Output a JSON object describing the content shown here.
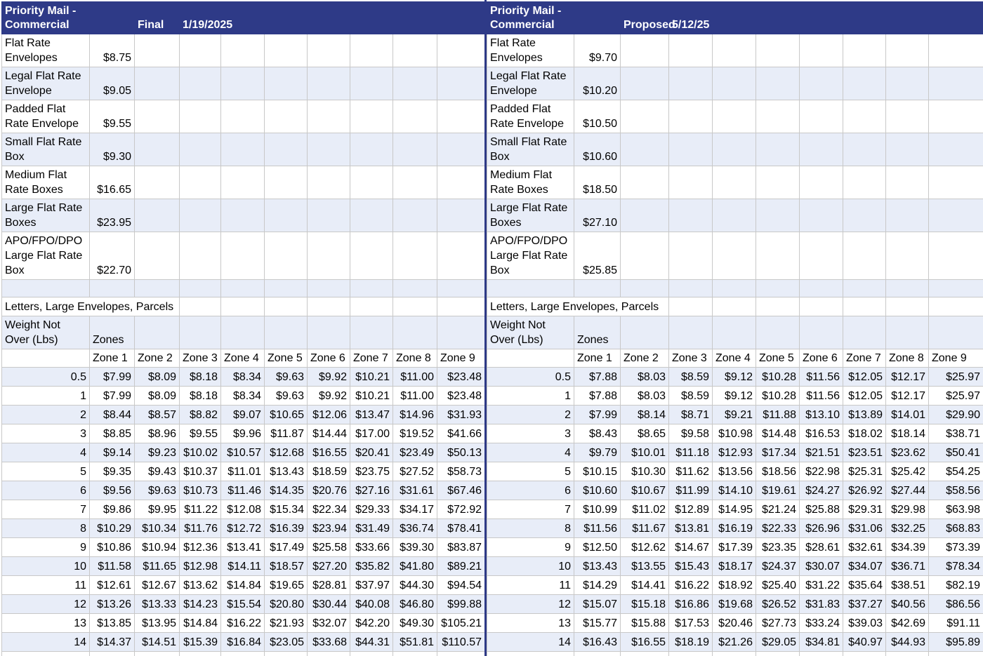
{
  "left": {
    "title": "Priority Mail - Commercial",
    "status": "Final",
    "date": "1/19/2025",
    "flat_rate": [
      {
        "label": "Flat Rate Envelopes",
        "price": "$8.75"
      },
      {
        "label": "Legal Flat Rate Envelope",
        "price": "$9.05"
      },
      {
        "label": "Padded Flat Rate Envelope",
        "price": "$9.55"
      },
      {
        "label": "Small Flat Rate Box",
        "price": "$9.30"
      },
      {
        "label": "Medium Flat Rate Boxes",
        "price": "$16.65"
      },
      {
        "label": "Large Flat Rate Boxes",
        "price": "$23.95"
      },
      {
        "label": "APO/FPO/DPO Large Flat Rate Box",
        "price": "$22.70"
      }
    ],
    "section": "Letters, Large Envelopes, Parcels",
    "weight_header": "Weight Not Over (Lbs)",
    "zones_header": "Zones",
    "zones": [
      "Zone 1",
      "Zone 2",
      "Zone 3",
      "Zone 4",
      "Zone 5",
      "Zone 6",
      "Zone 7",
      "Zone 8",
      "Zone 9"
    ],
    "rows": [
      {
        "weight": 0.5,
        "prices": [
          "$7.99",
          "$8.09",
          "$8.18",
          "$8.34",
          "$9.63",
          "$9.92",
          "$10.21",
          "$11.00",
          "$23.48"
        ]
      },
      {
        "weight": 1,
        "prices": [
          "$7.99",
          "$8.09",
          "$8.18",
          "$8.34",
          "$9.63",
          "$9.92",
          "$10.21",
          "$11.00",
          "$23.48"
        ]
      },
      {
        "weight": 2,
        "prices": [
          "$8.44",
          "$8.57",
          "$8.82",
          "$9.07",
          "$10.65",
          "$12.06",
          "$13.47",
          "$14.96",
          "$31.93"
        ]
      },
      {
        "weight": 3,
        "prices": [
          "$8.85",
          "$8.96",
          "$9.55",
          "$9.96",
          "$11.87",
          "$14.44",
          "$17.00",
          "$19.52",
          "$41.66"
        ]
      },
      {
        "weight": 4,
        "prices": [
          "$9.14",
          "$9.23",
          "$10.02",
          "$10.57",
          "$12.68",
          "$16.55",
          "$20.41",
          "$23.49",
          "$50.13"
        ]
      },
      {
        "weight": 5,
        "prices": [
          "$9.35",
          "$9.43",
          "$10.37",
          "$11.01",
          "$13.43",
          "$18.59",
          "$23.75",
          "$27.52",
          "$58.73"
        ]
      },
      {
        "weight": 6,
        "prices": [
          "$9.56",
          "$9.63",
          "$10.73",
          "$11.46",
          "$14.35",
          "$20.76",
          "$27.16",
          "$31.61",
          "$67.46"
        ]
      },
      {
        "weight": 7,
        "prices": [
          "$9.86",
          "$9.95",
          "$11.22",
          "$12.08",
          "$15.34",
          "$22.34",
          "$29.33",
          "$34.17",
          "$72.92"
        ]
      },
      {
        "weight": 8,
        "prices": [
          "$10.29",
          "$10.34",
          "$11.76",
          "$12.72",
          "$16.39",
          "$23.94",
          "$31.49",
          "$36.74",
          "$78.41"
        ]
      },
      {
        "weight": 9,
        "prices": [
          "$10.86",
          "$10.94",
          "$12.36",
          "$13.41",
          "$17.49",
          "$25.58",
          "$33.66",
          "$39.30",
          "$83.87"
        ]
      },
      {
        "weight": 10,
        "prices": [
          "$11.58",
          "$11.65",
          "$12.98",
          "$14.11",
          "$18.57",
          "$27.20",
          "$35.82",
          "$41.80",
          "$89.21"
        ]
      },
      {
        "weight": 11,
        "prices": [
          "$12.61",
          "$12.67",
          "$13.62",
          "$14.84",
          "$19.65",
          "$28.81",
          "$37.97",
          "$44.30",
          "$94.54"
        ]
      },
      {
        "weight": 12,
        "prices": [
          "$13.26",
          "$13.33",
          "$14.23",
          "$15.54",
          "$20.80",
          "$30.44",
          "$40.08",
          "$46.80",
          "$99.88"
        ]
      },
      {
        "weight": 13,
        "prices": [
          "$13.85",
          "$13.95",
          "$14.84",
          "$16.22",
          "$21.93",
          "$32.07",
          "$42.20",
          "$49.30",
          "$105.21"
        ]
      },
      {
        "weight": 14,
        "prices": [
          "$14.37",
          "$14.51",
          "$15.39",
          "$16.84",
          "$23.05",
          "$33.68",
          "$44.31",
          "$51.81",
          "$110.57"
        ]
      }
    ]
  },
  "right": {
    "title": "Priority Mail - Commercial",
    "status": "Proposed",
    "date": "5/12/25",
    "flat_rate": [
      {
        "label": "Flat Rate Envelopes",
        "price": "$9.70"
      },
      {
        "label": "Legal Flat Rate Envelope",
        "price": "$10.20"
      },
      {
        "label": "Padded Flat Rate Envelope",
        "price": "$10.50"
      },
      {
        "label": "Small Flat Rate Box",
        "price": "$10.60"
      },
      {
        "label": "Medium Flat Rate Boxes",
        "price": "$18.50"
      },
      {
        "label": "Large Flat Rate Boxes",
        "price": "$27.10"
      },
      {
        "label": "APO/FPO/DPO Large Flat Rate Box",
        "price": "$25.85"
      }
    ],
    "section": "Letters, Large Envelopes, Parcels",
    "weight_header": "Weight Not Over (Lbs)",
    "zones_header": "Zones",
    "zones": [
      "Zone 1",
      "Zone 2",
      "Zone 3",
      "Zone 4",
      "Zone 5",
      "Zone 6",
      "Zone 7",
      "Zone 8",
      "Zone 9"
    ],
    "rows": [
      {
        "weight": 0.5,
        "prices": [
          "$7.88",
          "$8.03",
          "$8.59",
          "$9.12",
          "$10.28",
          "$11.56",
          "$12.05",
          "$12.17",
          "$25.97"
        ]
      },
      {
        "weight": 1,
        "prices": [
          "$7.88",
          "$8.03",
          "$8.59",
          "$9.12",
          "$10.28",
          "$11.56",
          "$12.05",
          "$12.17",
          "$25.97"
        ]
      },
      {
        "weight": 2,
        "prices": [
          "$7.99",
          "$8.14",
          "$8.71",
          "$9.21",
          "$11.88",
          "$13.10",
          "$13.89",
          "$14.01",
          "$29.90"
        ]
      },
      {
        "weight": 3,
        "prices": [
          "$8.43",
          "$8.65",
          "$9.58",
          "$10.98",
          "$14.48",
          "$16.53",
          "$18.02",
          "$18.14",
          "$38.71"
        ]
      },
      {
        "weight": 4,
        "prices": [
          "$9.79",
          "$10.01",
          "$11.18",
          "$12.93",
          "$17.34",
          "$21.51",
          "$23.51",
          "$23.62",
          "$50.41"
        ]
      },
      {
        "weight": 5,
        "prices": [
          "$10.15",
          "$10.30",
          "$11.62",
          "$13.56",
          "$18.56",
          "$22.98",
          "$25.31",
          "$25.42",
          "$54.25"
        ]
      },
      {
        "weight": 6,
        "prices": [
          "$10.60",
          "$10.67",
          "$11.99",
          "$14.10",
          "$19.61",
          "$24.27",
          "$26.92",
          "$27.44",
          "$58.56"
        ]
      },
      {
        "weight": 7,
        "prices": [
          "$10.99",
          "$11.02",
          "$12.89",
          "$14.95",
          "$21.24",
          "$25.88",
          "$29.31",
          "$29.98",
          "$63.98"
        ]
      },
      {
        "weight": 8,
        "prices": [
          "$11.56",
          "$11.67",
          "$13.81",
          "$16.19",
          "$22.33",
          "$26.96",
          "$31.06",
          "$32.25",
          "$68.83"
        ]
      },
      {
        "weight": 9,
        "prices": [
          "$12.50",
          "$12.62",
          "$14.67",
          "$17.39",
          "$23.35",
          "$28.61",
          "$32.61",
          "$34.39",
          "$73.39"
        ]
      },
      {
        "weight": 10,
        "prices": [
          "$13.43",
          "$13.55",
          "$15.43",
          "$18.17",
          "$24.37",
          "$30.07",
          "$34.07",
          "$36.71",
          "$78.34"
        ]
      },
      {
        "weight": 11,
        "prices": [
          "$14.29",
          "$14.41",
          "$16.22",
          "$18.92",
          "$25.40",
          "$31.22",
          "$35.64",
          "$38.51",
          "$82.19"
        ]
      },
      {
        "weight": 12,
        "prices": [
          "$15.07",
          "$15.18",
          "$16.86",
          "$19.68",
          "$26.52",
          "$31.83",
          "$37.27",
          "$40.56",
          "$86.56"
        ]
      },
      {
        "weight": 13,
        "prices": [
          "$15.77",
          "$15.88",
          "$17.53",
          "$20.46",
          "$27.73",
          "$33.24",
          "$39.03",
          "$42.69",
          "$91.11"
        ]
      },
      {
        "weight": 14,
        "prices": [
          "$16.43",
          "$16.55",
          "$18.19",
          "$21.26",
          "$29.05",
          "$34.81",
          "$40.97",
          "$44.93",
          "$95.89"
        ]
      }
    ]
  }
}
